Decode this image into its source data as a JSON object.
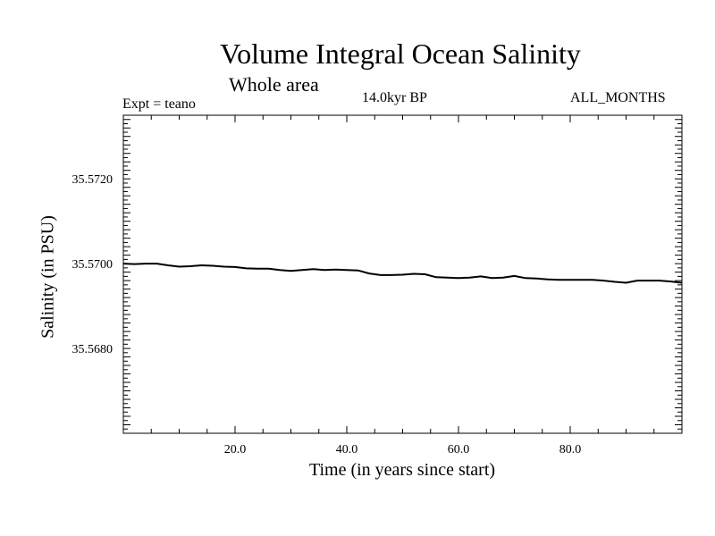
{
  "chart_data": {
    "type": "line",
    "title": "Volume Integral Ocean Salinity",
    "subtitle": "Whole area",
    "experiment": "Expt = teano",
    "period": "14.0kyr BP",
    "months": "ALL_MONTHS",
    "xlabel": "Time (in years since start)",
    "ylabel": "Salinity (in PSU)",
    "xlim": [
      0,
      100
    ],
    "ylim": [
      35.566,
      35.5735
    ],
    "xticks": [
      20,
      40,
      60,
      80
    ],
    "xtick_labels": [
      "20.0",
      "40.0",
      "60.0",
      "80.0"
    ],
    "yticks": [
      35.568,
      35.57,
      35.572
    ],
    "ytick_labels": [
      "35.5680",
      "35.5700",
      "35.5720"
    ],
    "series": [
      {
        "name": "Salinity",
        "x": [
          0,
          2,
          4,
          6,
          8,
          10,
          12,
          14,
          16,
          18,
          20,
          22,
          24,
          26,
          28,
          30,
          32,
          34,
          36,
          38,
          40,
          42,
          44,
          46,
          48,
          50,
          52,
          54,
          56,
          58,
          60,
          62,
          64,
          66,
          68,
          70,
          72,
          74,
          76,
          78,
          80,
          82,
          84,
          86,
          88,
          90,
          92,
          94,
          96,
          98,
          100
        ],
        "values": [
          35.57,
          35.56999,
          35.57,
          35.57,
          35.56996,
          35.56993,
          35.56994,
          35.56996,
          35.56995,
          35.56993,
          35.56992,
          35.56989,
          35.56988,
          35.56988,
          35.56985,
          35.56983,
          35.56985,
          35.56987,
          35.56985,
          35.56986,
          35.56985,
          35.56984,
          35.56977,
          35.56973,
          35.56973,
          35.56974,
          35.56976,
          35.56975,
          35.56968,
          35.56967,
          35.56966,
          35.56967,
          35.5697,
          35.56966,
          35.56967,
          35.56971,
          35.56966,
          35.56965,
          35.56963,
          35.56962,
          35.56962,
          35.56962,
          35.56962,
          35.5696,
          35.56957,
          35.56955,
          35.5696,
          35.5696,
          35.5696,
          35.56958,
          35.56955
        ]
      }
    ]
  }
}
